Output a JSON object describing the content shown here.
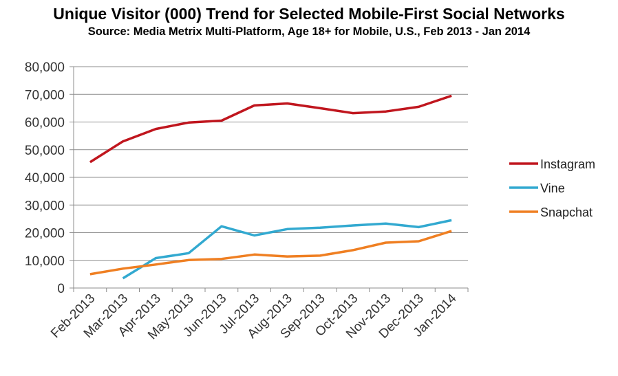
{
  "chart_data": {
    "type": "line",
    "title": "Unique Visitor (000) Trend for Selected Mobile-First Social Networks",
    "subtitle": "Source: Media Metrix Multi-Platform, Age 18+ for Mobile, U.S.,  Feb 2013 - Jan 2014",
    "categories": [
      "Feb-2013",
      "Mar-2013",
      "Apr-2013",
      "May-2013",
      "Jun-2013",
      "Jul-2013",
      "Aug-2013",
      "Sep-2013",
      "Oct-2013",
      "Nov-2013",
      "Dec-2013",
      "Jan-2014"
    ],
    "y_ticks": [
      "0",
      "10,000",
      "20,000",
      "30,000",
      "40,000",
      "50,000",
      "60,000",
      "70,000",
      "80,000"
    ],
    "ylim": [
      0,
      80000
    ],
    "grid": true,
    "legend_position": "right",
    "series": [
      {
        "name": "Instagram",
        "color": "#c0161e",
        "values": [
          45500,
          53000,
          57500,
          59800,
          60500,
          66000,
          66700,
          65000,
          63200,
          63800,
          65500,
          69500
        ]
      },
      {
        "name": "Vine",
        "color": "#32a9d0",
        "values": [
          null,
          3500,
          10800,
          12600,
          22300,
          19000,
          21300,
          21800,
          22600,
          23300,
          22000,
          24500
        ]
      },
      {
        "name": "Snapchat",
        "color": "#ef7f22",
        "values": [
          5000,
          7000,
          8500,
          10100,
          10500,
          12100,
          11400,
          11700,
          13700,
          16400,
          16900,
          20600
        ]
      }
    ]
  }
}
